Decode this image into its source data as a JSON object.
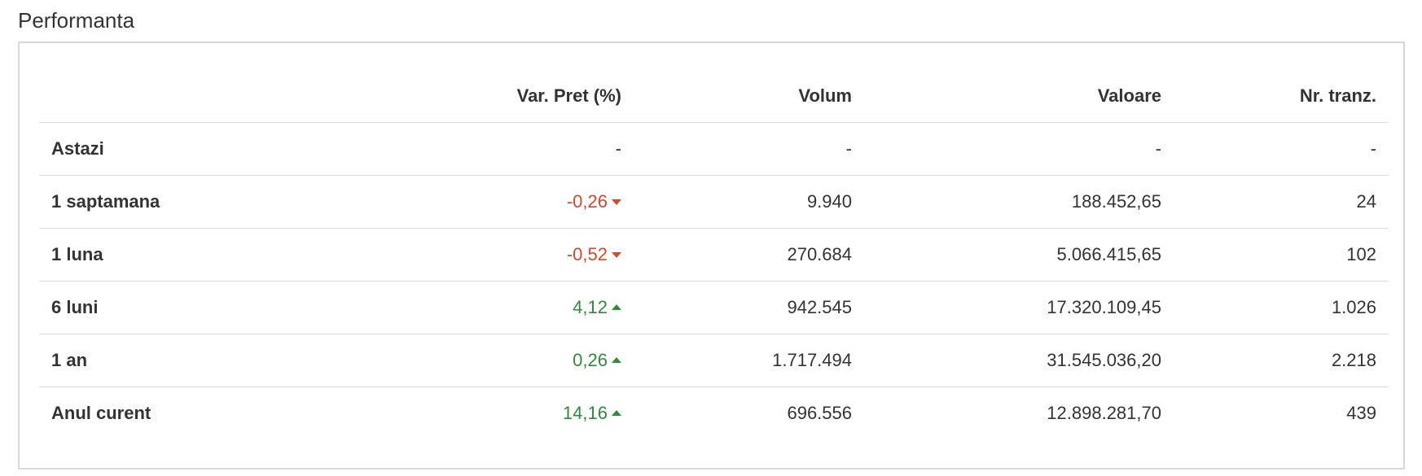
{
  "section": {
    "title": "Performanta"
  },
  "colors": {
    "negative": "#d9472b",
    "positive": "#2e8b3a",
    "border": "#d8d8d8",
    "row_divider": "#dddddd"
  },
  "table": {
    "headers": [
      "",
      "Var. Pret (%)",
      "Volum",
      "Valoare",
      "Nr. tranz."
    ],
    "rows": [
      {
        "label": "Astazi",
        "var_pret": "-",
        "trend": "none",
        "volum": "-",
        "valoare": "-",
        "nr_tranz": "-"
      },
      {
        "label": "1 saptamana",
        "var_pret": "-0,26",
        "trend": "down",
        "volum": "9.940",
        "valoare": "188.452,65",
        "nr_tranz": "24"
      },
      {
        "label": "1 luna",
        "var_pret": "-0,52",
        "trend": "down",
        "volum": "270.684",
        "valoare": "5.066.415,65",
        "nr_tranz": "102"
      },
      {
        "label": "6 luni",
        "var_pret": "4,12",
        "trend": "up",
        "volum": "942.545",
        "valoare": "17.320.109,45",
        "nr_tranz": "1.026"
      },
      {
        "label": "1 an",
        "var_pret": "0,26",
        "trend": "up",
        "volum": "1.717.494",
        "valoare": "31.545.036,20",
        "nr_tranz": "2.218"
      },
      {
        "label": "Anul curent",
        "var_pret": "14,16",
        "trend": "up",
        "volum": "696.556",
        "valoare": "12.898.281,70",
        "nr_tranz": "439"
      }
    ]
  }
}
